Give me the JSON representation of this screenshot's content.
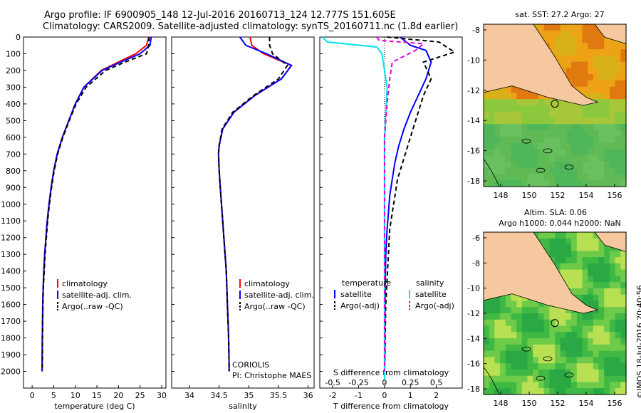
{
  "header": {
    "line1": "Argo profile: IF 6900905_148 12-Jul-2016 20160713_124 12.777S 151.605E",
    "line2": "Climatology: CARS2009. Satellite-adjusted climatology: synTS_20160711.nc (1.8d earlier)"
  },
  "colors": {
    "climatology": "#ff0000",
    "satellite": "#0000ff",
    "argo": "#000000",
    "s_satellite": "#00e5ee",
    "s_argo": "#dd00dd",
    "land": "#f5c8a0"
  },
  "chart_data": [
    {
      "type": "line",
      "xlabel": "temperature (deg C)",
      "ylabel": "",
      "xlim": [
        -2,
        31
      ],
      "ylim": [
        2100,
        0
      ],
      "xticks": [
        0,
        5,
        10,
        15,
        20,
        25,
        30
      ],
      "yticks": [
        0,
        100,
        200,
        300,
        400,
        500,
        600,
        700,
        800,
        900,
        1000,
        1100,
        1200,
        1300,
        1400,
        1500,
        1600,
        1700,
        1800,
        1900,
        2000
      ],
      "legend": [
        "climatology",
        "satellite-adj. clim.",
        "Argo(..raw -QC)"
      ],
      "series": [
        {
          "name": "climatology",
          "x": [
            27,
            26.5,
            24,
            20,
            16,
            12,
            10,
            8.5,
            7,
            5.8,
            5,
            4.4,
            3.9,
            3.5,
            3.2,
            2.9,
            2.7,
            2.55,
            2.45,
            2.4,
            2.35,
            2.3
          ],
          "y": [
            0,
            50,
            100,
            150,
            200,
            300,
            400,
            500,
            600,
            700,
            800,
            900,
            1000,
            1100,
            1200,
            1300,
            1400,
            1500,
            1600,
            1700,
            1800,
            2000
          ]
        },
        {
          "name": "satellite-adj. clim.",
          "x": [
            27.6,
            27.3,
            25,
            20.5,
            16.2,
            12,
            10,
            8.5,
            7,
            5.8,
            5,
            4.4,
            3.9,
            3.5,
            3.2,
            2.9,
            2.7,
            2.55,
            2.45,
            2.4,
            2.35,
            2.3
          ],
          "y": [
            0,
            50,
            100,
            150,
            200,
            300,
            400,
            500,
            600,
            700,
            800,
            900,
            1000,
            1100,
            1200,
            1300,
            1400,
            1500,
            1600,
            1700,
            1800,
            2000
          ]
        },
        {
          "name": "Argo(..raw -QC)",
          "x": [
            27.1,
            27,
            26.5,
            21.5,
            17,
            12.5,
            10.2,
            8.6,
            7.1,
            5.9,
            5.1,
            4.5,
            4,
            3.6,
            3.3,
            3,
            2.8,
            2.6,
            2.5,
            2.45,
            2.4,
            2.35
          ],
          "y": [
            0,
            50,
            100,
            150,
            200,
            300,
            400,
            500,
            600,
            700,
            800,
            900,
            1000,
            1100,
            1200,
            1300,
            1400,
            1500,
            1600,
            1700,
            1800,
            2000
          ]
        }
      ]
    },
    {
      "type": "line",
      "xlabel": "salinity",
      "xlim": [
        33.7,
        36.1
      ],
      "ylim": [
        2100,
        0
      ],
      "xticks": [
        34,
        34.5,
        35,
        35.5,
        36
      ],
      "legend": [
        "climatology",
        "satellite-adj. clim.",
        "Argo(..raw -QC)"
      ],
      "annotation": [
        "CORIOLIS",
        "PI: Christophe MAES"
      ],
      "series": [
        {
          "name": "climatology",
          "x": [
            35.02,
            35.05,
            35.25,
            35.72,
            35.55,
            35.1,
            34.75,
            34.56,
            34.5,
            34.49,
            34.5,
            34.52,
            34.54,
            34.56,
            34.58,
            34.6,
            34.62,
            34.63,
            34.64,
            34.65,
            34.66,
            34.67
          ],
          "y": [
            0,
            50,
            100,
            170,
            250,
            350,
            450,
            550,
            650,
            700,
            800,
            900,
            1000,
            1100,
            1200,
            1300,
            1400,
            1500,
            1600,
            1700,
            1800,
            2000
          ]
        },
        {
          "name": "satellite-adj. clim.",
          "x": [
            34.85,
            34.95,
            35.3,
            35.72,
            35.55,
            35.1,
            34.75,
            34.56,
            34.5,
            34.49,
            34.5,
            34.52,
            34.54,
            34.56,
            34.58,
            34.6,
            34.62,
            34.63,
            34.64,
            34.65,
            34.66,
            34.67
          ],
          "y": [
            0,
            50,
            100,
            170,
            250,
            350,
            450,
            550,
            650,
            700,
            800,
            900,
            1000,
            1100,
            1200,
            1300,
            1400,
            1500,
            1600,
            1700,
            1800,
            2000
          ]
        },
        {
          "name": "Argo(..raw -QC)",
          "x": [
            35.35,
            35.35,
            35.4,
            35.65,
            35.5,
            35.08,
            34.73,
            34.55,
            34.5,
            34.49,
            34.5,
            34.52,
            34.54,
            34.56,
            34.58,
            34.6,
            34.62,
            34.63,
            34.64,
            34.65,
            34.66,
            34.67
          ],
          "y": [
            0,
            50,
            100,
            170,
            250,
            350,
            450,
            550,
            650,
            700,
            800,
            900,
            1000,
            1100,
            1200,
            1300,
            1400,
            1500,
            1600,
            1700,
            1800,
            2000
          ]
        }
      ]
    },
    {
      "type": "line",
      "xlabel": "T difference from climatology",
      "xlabel2": "S difference from climatology",
      "xlim": [
        -2.5,
        3
      ],
      "ylim": [
        2100,
        0
      ],
      "xticks": [
        -2,
        -1,
        0,
        1,
        2
      ],
      "xticks_s": [
        -0.5,
        -0.25,
        0,
        0.25,
        0.5
      ],
      "legend_left_title": "temperature",
      "legend_right_title": "salinity",
      "legend": [
        "satellite",
        "Argo(-adj)",
        "satellite",
        "Argo(-adj)"
      ],
      "series": [
        {
          "name": "satellite",
          "x": [
            0.6,
            1.0,
            1.6,
            1.8,
            1.6,
            1.3,
            1.0,
            0.75,
            0.55,
            0.4,
            0.3,
            0.2,
            0.15,
            0.1,
            0.05,
            0.03,
            0.02,
            0.01,
            0.01,
            0
          ],
          "y": [
            0,
            50,
            80,
            150,
            250,
            350,
            450,
            550,
            650,
            750,
            850,
            950,
            1050,
            1150,
            1300,
            1450,
            1600,
            1750,
            1900,
            2000
          ]
        },
        {
          "name": "Argo(-adj)",
          "x": [
            0.1,
            2.1,
            2.7,
            1.5,
            1.8,
            1.5,
            1.3,
            1.1,
            0.9,
            0.7,
            0.5,
            0.4,
            0.3,
            0.2,
            0.15,
            0.1,
            0.05,
            0.03,
            0.02,
            0
          ],
          "y": [
            0,
            30,
            90,
            150,
            250,
            350,
            450,
            550,
            650,
            750,
            850,
            950,
            1050,
            1150,
            1300,
            1450,
            1600,
            1750,
            1900,
            2000
          ]
        },
        {
          "name": "s_satellite",
          "x": [
            -2.4,
            -2.2,
            -0.3,
            -0.1,
            0,
            0.1,
            0.05,
            0,
            0,
            0,
            0,
            0,
            0,
            0,
            0,
            0,
            0,
            0,
            0,
            0
          ],
          "y": [
            0,
            30,
            60,
            100,
            200,
            300,
            450,
            600,
            750,
            900,
            1050,
            1200,
            1350,
            1500,
            1650,
            1800,
            1900,
            1950,
            2000,
            2050
          ]
        },
        {
          "name": "s_argo",
          "x": [
            -0.3,
            -0.2,
            1.5,
            1.2,
            0.3,
            0.2,
            0.1,
            0,
            0,
            0,
            0,
            0
          ],
          "y": [
            0,
            20,
            40,
            80,
            150,
            250,
            400,
            600,
            900,
            1300,
            1700,
            2000
          ]
        }
      ]
    }
  ],
  "map_sst": {
    "title": "sat. SST: 27.2 Argo: 27",
    "yticks": [
      "-8",
      "-10",
      "-12",
      "-14",
      "-16",
      "-18"
    ],
    "xticks": [
      "148",
      "150",
      "152",
      "154",
      "156"
    ]
  },
  "map_sla": {
    "title1": "Altim. SLA: 0.06",
    "title2": "Argo h1000: 0.044 h2000: NaN",
    "yticks": [
      "-6",
      "-8",
      "-10",
      "-12",
      "-14",
      "-16",
      "-18"
    ],
    "xticks": [
      "148",
      "150",
      "152",
      "154",
      "156"
    ]
  },
  "credit": "©IMOS 18-Jul-2016 20:40:56"
}
